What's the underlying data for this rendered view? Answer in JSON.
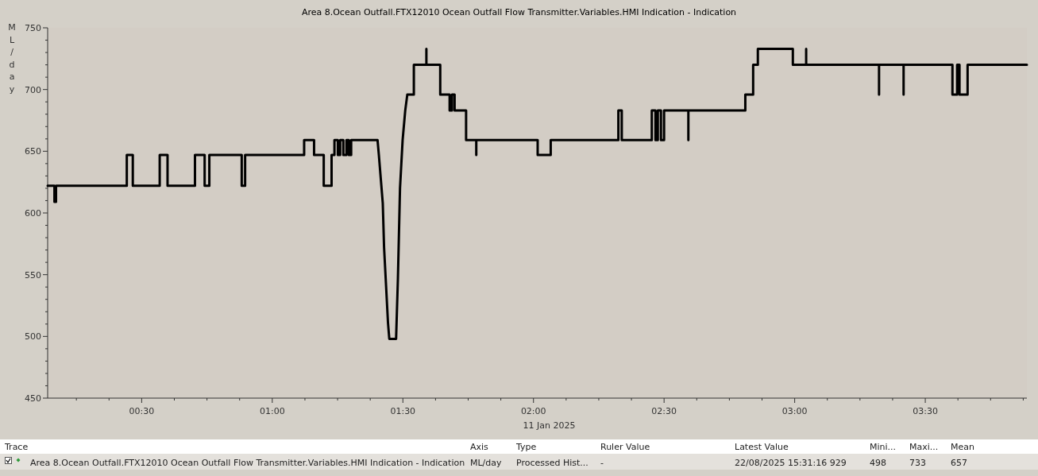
{
  "chart_data": {
    "type": "line",
    "title": "Area 8.Ocean Outfall.FTX12010 Ocean Outfall Flow Transmitter.Variables.HMI Indication - Indication",
    "ylabel": "ML/day",
    "x": [
      0.14,
      0.166,
      0.166,
      0.172,
      0.172,
      0.443,
      0.443,
      0.466,
      0.466,
      0.569,
      0.569,
      0.599,
      0.599,
      0.704,
      0.704,
      0.741,
      0.741,
      0.759,
      0.759,
      0.883,
      0.883,
      0.896,
      0.896,
      1.122,
      1.122,
      1.16,
      1.16,
      1.197,
      1.197,
      1.227,
      1.227,
      1.238,
      1.238,
      1.251,
      1.251,
      1.26,
      1.26,
      1.272,
      1.272,
      1.284,
      1.284,
      1.293,
      1.293,
      1.302,
      1.302,
      1.403,
      1.408,
      1.423,
      1.428,
      1.443,
      1.448,
      1.474,
      1.481,
      1.489,
      1.499,
      1.509,
      1.517,
      1.542,
      1.542,
      1.59,
      1.59,
      1.59,
      1.643,
      1.643,
      1.679,
      1.679,
      1.688,
      1.688,
      1.698,
      1.698,
      1.742,
      1.742,
      1.781,
      1.781,
      1.781,
      2.016,
      2.016,
      2.066,
      2.066,
      2.325,
      2.325,
      2.338,
      2.338,
      2.453,
      2.453,
      2.467,
      2.467,
      2.476,
      2.476,
      2.488,
      2.488,
      2.5,
      2.5,
      2.593,
      2.593,
      2.593,
      2.811,
      2.811,
      2.841,
      2.841,
      2.859,
      2.859,
      2.993,
      2.993,
      3.044,
      3.044,
      3.044,
      3.323,
      3.323,
      3.323,
      3.417,
      3.417,
      3.417,
      3.604,
      3.604,
      3.622,
      3.622,
      3.631,
      3.631,
      3.662,
      3.662,
      3.889
    ],
    "series": [
      {
        "color": "#000000",
        "values": [
          622,
          622,
          609,
          609,
          622,
          622,
          647,
          647,
          622,
          622,
          647,
          647,
          622,
          622,
          647,
          647,
          622,
          622,
          647,
          647,
          622,
          622,
          647,
          647,
          659,
          659,
          647,
          647,
          622,
          622,
          647,
          647,
          659,
          659,
          647,
          647,
          659,
          659,
          647,
          647,
          659,
          659,
          647,
          647,
          659,
          659,
          647,
          608,
          572,
          511,
          498,
          498,
          547,
          620,
          659,
          683,
          696,
          696,
          720,
          720,
          733,
          720,
          720,
          696,
          696,
          683,
          683,
          696,
          696,
          683,
          683,
          659,
          659,
          647,
          659,
          659,
          647,
          647,
          659,
          659,
          683,
          683,
          659,
          659,
          683,
          683,
          659,
          659,
          683,
          683,
          659,
          659,
          683,
          683,
          659,
          683,
          683,
          696,
          696,
          720,
          720,
          733,
          733,
          720,
          720,
          733,
          720,
          720,
          696,
          720,
          720,
          696,
          720,
          720,
          696,
          696,
          720,
          720,
          696,
          696,
          720,
          720
        ]
      }
    ],
    "xlim": [
      0.14,
      3.889
    ],
    "ylim": [
      450,
      750
    ],
    "xticks": [
      {
        "value": 0.25,
        "label": null
      },
      {
        "value": 0.375,
        "label": null
      },
      {
        "value": 0.5,
        "label": "00:30"
      },
      {
        "value": 0.625,
        "label": null
      },
      {
        "value": 0.75,
        "label": null
      },
      {
        "value": 0.875,
        "label": null
      },
      {
        "value": 1,
        "label": "01:00"
      },
      {
        "value": 1.125,
        "label": null
      },
      {
        "value": 1.25,
        "label": null
      },
      {
        "value": 1.375,
        "label": null
      },
      {
        "value": 1.5,
        "label": "01:30"
      },
      {
        "value": 1.625,
        "label": null
      },
      {
        "value": 1.75,
        "label": null
      },
      {
        "value": 1.875,
        "label": null
      },
      {
        "value": 2,
        "label": "02:00"
      },
      {
        "value": 2.125,
        "label": null
      },
      {
        "value": 2.25,
        "label": null
      },
      {
        "value": 2.375,
        "label": null
      },
      {
        "value": 2.5,
        "label": "02:30"
      },
      {
        "value": 2.625,
        "label": null
      },
      {
        "value": 2.75,
        "label": null
      },
      {
        "value": 2.875,
        "label": null
      },
      {
        "value": 3,
        "label": "03:00"
      },
      {
        "value": 3.125,
        "label": null
      },
      {
        "value": 3.25,
        "label": null
      },
      {
        "value": 3.375,
        "label": null
      },
      {
        "value": 3.5,
        "label": "03:30"
      },
      {
        "value": 3.625,
        "label": null
      },
      {
        "value": 3.75,
        "label": null
      },
      {
        "value": 3.875,
        "label": null
      }
    ],
    "yticks": [
      450,
      {
        "value": 460,
        "label": null
      },
      {
        "value": 470,
        "label": null
      },
      {
        "value": 480,
        "label": null
      },
      {
        "value": 490,
        "label": null
      },
      500,
      {
        "value": 510,
        "label": null
      },
      {
        "value": 520,
        "label": null
      },
      {
        "value": 530,
        "label": null
      },
      {
        "value": 540,
        "label": null
      },
      550,
      {
        "value": 560,
        "label": null
      },
      {
        "value": 570,
        "label": null
      },
      {
        "value": 580,
        "label": null
      },
      {
        "value": 590,
        "label": null
      },
      600,
      {
        "value": 610,
        "label": null
      },
      {
        "value": 620,
        "label": null
      },
      {
        "value": 630,
        "label": null
      },
      {
        "value": 640,
        "label": null
      },
      650,
      {
        "value": 660,
        "label": null
      },
      {
        "value": 670,
        "label": null
      },
      {
        "value": 680,
        "label": null
      },
      {
        "value": 690,
        "label": null
      },
      700,
      {
        "value": 710,
        "label": null
      },
      {
        "value": 720,
        "label": null
      },
      {
        "value": 730,
        "label": null
      },
      {
        "value": 740,
        "label": null
      },
      750
    ],
    "grid": false,
    "annotations": [
      "11 Jan 2025",
      "Trace",
      "Axis",
      "Type",
      "Ruler Value",
      "Latest Value",
      "Mini...",
      "Maxi...",
      "Mean",
      "Area 8.Ocean Outfall.FTX12010 Ocean Outfall Flow Transmitter.Variables.HMI Indication - Indication",
      "ML/day",
      "Processed Hist...",
      "-",
      "22/08/2025 15:31:16  929",
      "498",
      "733",
      "657"
    ]
  }
}
